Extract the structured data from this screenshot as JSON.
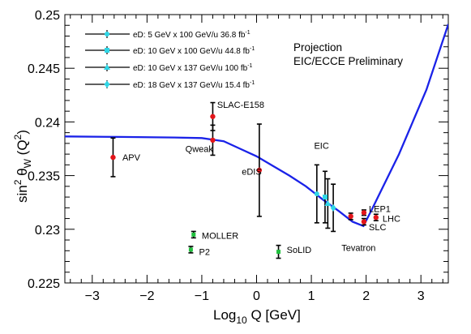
{
  "chart_data": {
    "type": "scatter",
    "xlabel_main": "Log",
    "xlabel_sub": "10",
    "xlabel_rest": " Q [GeV]",
    "ylabel_main": "sin",
    "ylabel_sup1": "2",
    "ylabel_theta": " θ",
    "ylabel_sub": "W",
    "ylabel_paren_open": " (Q",
    "ylabel_sup2": "2",
    "ylabel_paren_close": ")",
    "xlim": [
      -3.5,
      3.5
    ],
    "ylim": [
      0.225,
      0.25
    ],
    "x_ticks": [
      -3,
      -2,
      -1,
      0,
      1,
      2,
      3
    ],
    "y_ticks": [
      0.225,
      0.23,
      0.235,
      0.24,
      0.245,
      0.25
    ],
    "x_tick_labels": [
      "−3",
      "−2",
      "−1",
      "0",
      "1",
      "2",
      "3"
    ],
    "y_tick_labels": [
      "0.225",
      "0.23",
      "0.235",
      "0.24",
      "0.245",
      "0.25"
    ],
    "annotation_line1": "Projection",
    "annotation_line2": "EIC/ECCE Preliminary",
    "legend": {
      "placement": "top-left",
      "entries": [
        {
          "label": "eD: 5 GeV x 100 GeV/u 36.8 fb",
          "sup": "-1"
        },
        {
          "label": "eD: 10 GeV x 100 GeV/u 44.8 fb",
          "sup": "-1"
        },
        {
          "label": "eD: 10 GeV x 137 GeV/u 100 fb",
          "sup": "-1"
        },
        {
          "label": "eD: 18 GeV x 137 GeV/u 15.4 fb",
          "sup": "-1"
        }
      ]
    },
    "theory_curve": [
      [
        -3.5,
        0.23865
      ],
      [
        -2.5,
        0.2386
      ],
      [
        -1.5,
        0.23855
      ],
      [
        -1.0,
        0.2385
      ],
      [
        -0.6,
        0.2382
      ],
      [
        -0.3,
        0.2375
      ],
      [
        0.0,
        0.2368
      ],
      [
        0.3,
        0.2359
      ],
      [
        0.6,
        0.235
      ],
      [
        0.9,
        0.234
      ],
      [
        1.2,
        0.2328
      ],
      [
        1.5,
        0.2317
      ],
      [
        1.75,
        0.2307
      ],
      [
        1.95,
        0.2303
      ],
      [
        2.1,
        0.2318
      ],
      [
        2.6,
        0.237
      ],
      [
        3.1,
        0.243
      ],
      [
        3.5,
        0.2491
      ]
    ],
    "measurements": [
      {
        "label": "APV",
        "x": -2.62,
        "y": 0.2367,
        "err": 0.0018
      },
      {
        "label": "",
        "x": -0.8,
        "y": 0.2405,
        "err": 0.0013
      },
      {
        "label": "",
        "x": -0.8,
        "y": 0.2383,
        "err": 0.0014
      },
      {
        "label": "",
        "x": 0.05,
        "y": 0.2355,
        "err": 0.0043
      },
      {
        "label": "",
        "x": 1.72,
        "y": 0.2312,
        "err": 0.0003
      },
      {
        "label": "",
        "x": 1.96,
        "y": 0.23155,
        "err": 0.00025
      },
      {
        "label": "",
        "x": 1.96,
        "y": 0.2307,
        "err": 0.0003
      },
      {
        "label": "",
        "x": 2.18,
        "y": 0.2311,
        "err": 0.0003
      }
    ],
    "projections_future": [
      {
        "label": "MOLLER",
        "x": -1.15,
        "y": 0.2295,
        "err": 0.0003
      },
      {
        "label": "P2",
        "x": -1.2,
        "y": 0.2281,
        "err": 0.0003
      },
      {
        "label": "SoLID",
        "x": 0.4,
        "y": 0.2279,
        "err": 0.0006
      }
    ],
    "eic_points": [
      {
        "x": 1.1,
        "y": 0.2333,
        "err": 0.0027
      },
      {
        "x": 1.25,
        "y": 0.233,
        "err": 0.0024
      },
      {
        "x": 1.3,
        "y": 0.2324,
        "err": 0.0023
      },
      {
        "x": 1.4,
        "y": 0.232,
        "err": 0.0022
      }
    ],
    "text_labels": [
      {
        "text": "SLAC-E158",
        "x": -0.72,
        "y": 0.2416
      },
      {
        "text": "Qweak",
        "x": -1.3,
        "y": 0.2375
      },
      {
        "text": "APV",
        "x": -2.45,
        "y": 0.2367
      },
      {
        "text": "eDIS",
        "x": -0.27,
        "y": 0.2354
      },
      {
        "text": "EIC",
        "x": 1.05,
        "y": 0.2378
      },
      {
        "text": "LEP1",
        "x": 2.05,
        "y": 0.2319
      },
      {
        "text": "LHC",
        "x": 2.3,
        "y": 0.231
      },
      {
        "text": "SLC",
        "x": 2.05,
        "y": 0.2302
      },
      {
        "text": "Tevatron",
        "x": 1.55,
        "y": 0.2283
      },
      {
        "text": "MOLLER",
        "x": -1.0,
        "y": 0.2294
      },
      {
        "text": "P2",
        "x": -1.05,
        "y": 0.2279
      },
      {
        "text": "SoLID",
        "x": 0.55,
        "y": 0.2281
      }
    ],
    "colors": {
      "curve": "#1a22e8",
      "measurement": "#e3151a",
      "future": "#22c13f",
      "eic": "#2fd6e6",
      "error": "#000000"
    }
  }
}
